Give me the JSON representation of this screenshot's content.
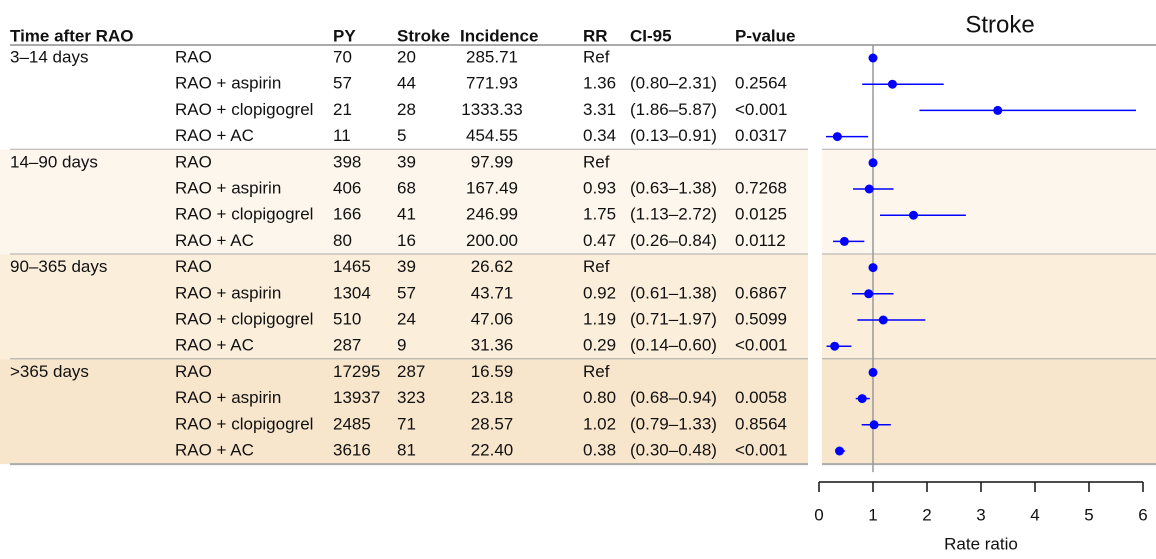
{
  "table": {
    "headers": [
      "Time after RAO",
      "PY",
      "Stroke",
      "Incidence",
      "RR",
      "CI-95",
      "P-value"
    ],
    "groups": [
      {
        "label": "3–14 days",
        "rows": [
          {
            "treatment": "RAO",
            "py": "70",
            "stroke": "20",
            "incidence": "285.71",
            "rr": "Ref"
          },
          {
            "treatment": "RAO + aspirin",
            "py": "57",
            "stroke": "44",
            "incidence": "771.93",
            "rr": "1.36",
            "ci": "(0.80–2.31)",
            "p": "0.2564"
          },
          {
            "treatment": "RAO + clopigogrel",
            "py": "21",
            "stroke": "28",
            "incidence": "1333.33",
            "rr": "3.31",
            "ci": "(1.86–5.87)",
            "p": "<0.001"
          },
          {
            "treatment": "RAO + AC",
            "py": "11",
            "stroke": "5",
            "incidence": "454.55",
            "rr": "0.34",
            "ci": "(0.13–0.91)",
            "p": "0.0317"
          }
        ]
      },
      {
        "label": "14–90 days",
        "rows": [
          {
            "treatment": "RAO",
            "py": "398",
            "stroke": "39",
            "incidence": "97.99",
            "rr": "Ref"
          },
          {
            "treatment": "RAO + aspirin",
            "py": "406",
            "stroke": "68",
            "incidence": "167.49",
            "rr": "0.93",
            "ci": "(0.63–1.38)",
            "p": "0.7268"
          },
          {
            "treatment": "RAO + clopigogrel",
            "py": "166",
            "stroke": "41",
            "incidence": "246.99",
            "rr": "1.75",
            "ci": "(1.13–2.72)",
            "p": "0.0125"
          },
          {
            "treatment": "RAO + AC",
            "py": "80",
            "stroke": "16",
            "incidence": "200.00",
            "rr": "0.47",
            "ci": "(0.26–0.84)",
            "p": "0.0112"
          }
        ]
      },
      {
        "label": "90–365 days",
        "rows": [
          {
            "treatment": "RAO",
            "py": "1465",
            "stroke": "39",
            "incidence": "26.62",
            "rr": "Ref"
          },
          {
            "treatment": "RAO + aspirin",
            "py": "1304",
            "stroke": "57",
            "incidence": "43.71",
            "rr": "0.92",
            "ci": "(0.61–1.38)",
            "p": "0.6867"
          },
          {
            "treatment": "RAO + clopigogrel",
            "py": "510",
            "stroke": "24",
            "incidence": "47.06",
            "rr": "1.19",
            "ci": "(0.71–1.97)",
            "p": "0.5099"
          },
          {
            "treatment": "RAO + AC",
            "py": "287",
            "stroke": "9",
            "incidence": "31.36",
            "rr": "0.29",
            "ci": "(0.14–0.60)",
            "p": "<0.001"
          }
        ]
      },
      {
        "label": ">365 days",
        "rows": [
          {
            "treatment": "RAO",
            "py": "17295",
            "stroke": "287",
            "incidence": "16.59",
            "rr": "Ref"
          },
          {
            "treatment": "RAO + aspirin",
            "py": "13937",
            "stroke": "323",
            "incidence": "23.18",
            "rr": "0.80",
            "ci": "(0.68–0.94)",
            "p": "0.0058"
          },
          {
            "treatment": "RAO + clopigogrel",
            "py": "2485",
            "stroke": "71",
            "incidence": "28.57",
            "rr": "1.02",
            "ci": "(0.79–1.33)",
            "p": "0.8564"
          },
          {
            "treatment": "RAO + AC",
            "py": "3616",
            "stroke": "81",
            "incidence": "22.40",
            "rr": "0.38",
            "ci": "(0.30–0.48)",
            "p": "<0.001"
          }
        ]
      }
    ]
  },
  "chart_data": {
    "type": "forest",
    "title": "Stroke",
    "x_label": "Rate ratio",
    "color": "#0000ff",
    "xlim": [
      0,
      6
    ],
    "xticks": [
      0,
      1,
      2,
      3,
      4,
      5,
      6
    ],
    "reference": 1,
    "values": [
      1,
      1.36,
      3.31,
      0.34,
      1,
      0.93,
      1.75,
      0.47,
      1,
      0.92,
      1.19,
      0.29,
      1,
      0.8,
      1.02,
      0.38
    ],
    "low": [
      null,
      0.8,
      1.86,
      0.13,
      null,
      0.63,
      1.13,
      0.26,
      null,
      0.61,
      0.71,
      0.14,
      null,
      0.68,
      0.79,
      0.3
    ],
    "high": [
      null,
      2.31,
      5.87,
      0.91,
      null,
      1.38,
      2.72,
      0.84,
      null,
      1.38,
      1.97,
      0.6,
      null,
      0.94,
      1.33,
      0.48
    ]
  }
}
